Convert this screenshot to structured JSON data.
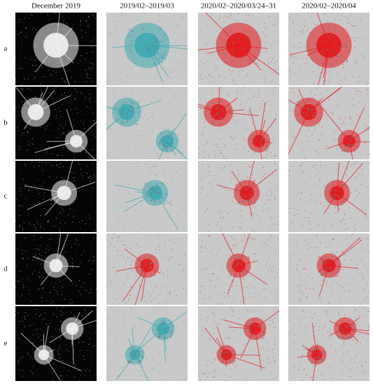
{
  "columns": [
    "December 2019",
    "2019/02–2019/03",
    "2020/02–2020/03/24–31",
    "2020/02–2020/04"
  ],
  "rows": [
    "a",
    "b",
    "c",
    "d",
    "e"
  ]
}
